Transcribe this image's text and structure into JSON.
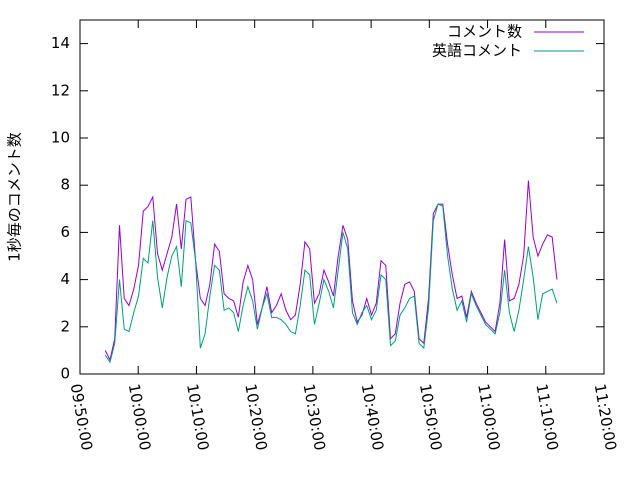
{
  "chart_data": {
    "type": "line",
    "ylabel": "1秒毎のコメント数",
    "xlim": [
      "09:50:00",
      "11:20:00"
    ],
    "xticks": [
      "09:50:00",
      "10:00:00",
      "10:10:00",
      "10:20:00",
      "10:30:00",
      "10:40:00",
      "10:50:00",
      "11:00:00",
      "11:10:00",
      "11:20:00"
    ],
    "ylim": [
      0,
      15
    ],
    "yticks": [
      0,
      2,
      4,
      6,
      8,
      10,
      12,
      14
    ],
    "legend": "top-right",
    "x": [
      "09:54:20",
      "09:55:09",
      "09:55:58",
      "09:56:47",
      "09:57:36",
      "09:58:25",
      "09:59:14",
      "10:00:03",
      "10:00:52",
      "10:01:41",
      "10:02:30",
      "10:03:19",
      "10:04:08",
      "10:04:57",
      "10:05:46",
      "10:06:35",
      "10:07:24",
      "10:08:13",
      "10:09:02",
      "10:09:51",
      "10:10:40",
      "10:11:29",
      "10:12:18",
      "10:13:07",
      "10:13:56",
      "10:14:45",
      "10:15:34",
      "10:16:23",
      "10:17:12",
      "10:18:01",
      "10:18:50",
      "10:19:39",
      "10:20:28",
      "10:21:17",
      "10:22:06",
      "10:22:55",
      "10:23:44",
      "10:24:33",
      "10:25:22",
      "10:26:11",
      "10:27:00",
      "10:27:49",
      "10:28:38",
      "10:29:27",
      "10:30:16",
      "10:31:05",
      "10:31:54",
      "10:32:43",
      "10:33:32",
      "10:34:21",
      "10:35:10",
      "10:35:59",
      "10:36:48",
      "10:37:37",
      "10:38:26",
      "10:39:15",
      "10:40:04",
      "10:40:53",
      "10:41:42",
      "10:42:31",
      "10:43:20",
      "10:44:09",
      "10:44:58",
      "10:45:47",
      "10:46:36",
      "10:47:25",
      "10:48:14",
      "10:49:03",
      "10:49:52",
      "10:50:41",
      "10:51:30",
      "10:52:19",
      "10:53:08",
      "10:53:57",
      "10:54:46",
      "10:55:35",
      "10:56:24",
      "10:57:13",
      "10:58:02",
      "10:58:51",
      "10:59:40",
      "11:00:29",
      "11:01:18",
      "11:02:07",
      "11:02:56",
      "11:03:45",
      "11:04:34",
      "11:05:23",
      "11:06:12",
      "11:07:01",
      "11:07:50",
      "11:08:39",
      "11:09:28",
      "11:10:17",
      "11:11:06",
      "11:11:55"
    ],
    "series": [
      {
        "name": "コメント数",
        "color": "#9400d3",
        "values": [
          1.0,
          0.6,
          1.5,
          6.3,
          3.2,
          2.9,
          3.6,
          4.6,
          6.9,
          7.1,
          7.5,
          5.1,
          4.4,
          5.1,
          5.8,
          7.2,
          5.3,
          7.4,
          7.5,
          4.8,
          3.2,
          2.9,
          3.8,
          5.5,
          5.2,
          3.4,
          3.2,
          3.1,
          2.4,
          3.9,
          4.6,
          4.0,
          2.1,
          2.8,
          3.7,
          2.6,
          2.9,
          3.4,
          2.7,
          2.3,
          2.5,
          3.8,
          5.6,
          5.3,
          3.0,
          3.4,
          4.4,
          3.9,
          3.3,
          5.0,
          6.3,
          5.7,
          3.1,
          2.2,
          2.5,
          3.2,
          2.5,
          3.0,
          4.8,
          4.6,
          1.5,
          1.7,
          3.0,
          3.8,
          3.9,
          3.5,
          1.5,
          1.3,
          3.2,
          6.8,
          7.2,
          7.2,
          5.5,
          4.2,
          3.2,
          3.3,
          2.4,
          3.5,
          3.0,
          2.6,
          2.2,
          2.0,
          1.8,
          3.0,
          5.7,
          3.1,
          3.2,
          3.8,
          5.0,
          8.2,
          5.8,
          5.0,
          5.5,
          5.9,
          5.8,
          4.0
        ]
      },
      {
        "name": "英語コメント",
        "color": "#009e73",
        "values": [
          0.8,
          0.5,
          1.3,
          4.0,
          1.9,
          1.8,
          2.6,
          3.3,
          4.9,
          4.7,
          6.5,
          4.1,
          2.8,
          4.1,
          5.0,
          5.4,
          3.7,
          6.5,
          6.4,
          4.8,
          1.1,
          1.7,
          3.3,
          4.6,
          4.4,
          2.7,
          2.8,
          2.6,
          1.8,
          2.9,
          3.7,
          3.1,
          1.9,
          2.8,
          3.4,
          2.4,
          2.4,
          2.3,
          2.1,
          1.8,
          1.7,
          2.9,
          4.4,
          4.2,
          2.1,
          3.0,
          4.0,
          3.5,
          2.8,
          4.4,
          6.0,
          5.3,
          2.6,
          2.1,
          2.6,
          2.9,
          2.3,
          2.7,
          4.2,
          4.0,
          1.2,
          1.4,
          2.5,
          2.8,
          3.2,
          3.3,
          1.3,
          1.1,
          2.8,
          6.5,
          7.2,
          7.1,
          5.0,
          3.6,
          2.7,
          3.1,
          2.2,
          3.4,
          2.9,
          2.5,
          2.1,
          1.9,
          1.7,
          2.6,
          4.4,
          2.6,
          1.8,
          2.7,
          4.0,
          5.4,
          4.1,
          2.3,
          3.4,
          3.5,
          3.6,
          3.0
        ]
      }
    ]
  }
}
